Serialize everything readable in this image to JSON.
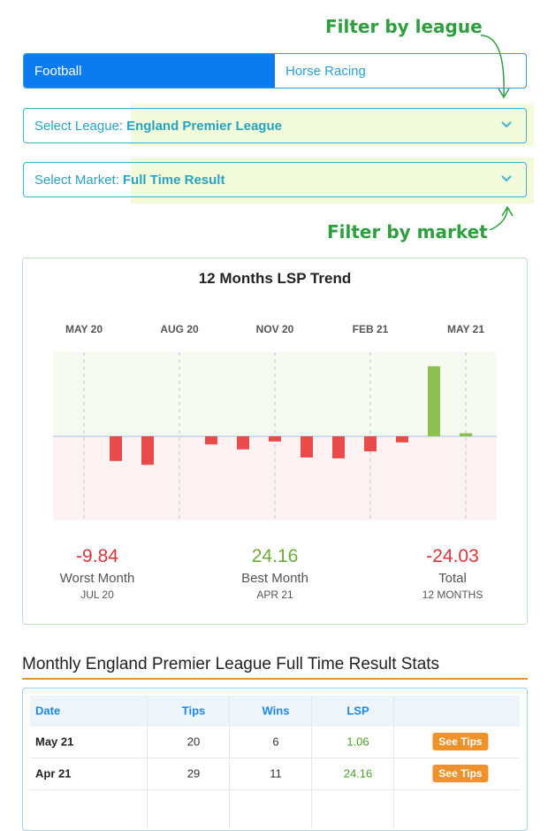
{
  "tabs": [
    "Football",
    "Horse Racing"
  ],
  "annotations": {
    "league": "Filter by league",
    "market": "Filter by market"
  },
  "league_select": {
    "label": "Select League:",
    "value": "England Premier League"
  },
  "market_select": {
    "label": "Select Market:",
    "value": "Full Time Result"
  },
  "chart_data": {
    "type": "bar",
    "title": "12 Months LSP Trend",
    "categories": [
      "MAY 20",
      null,
      null,
      "AUG 20",
      null,
      null,
      "NOV 20",
      null,
      null,
      "FEB 21",
      null,
      null,
      "MAY 21"
    ],
    "values": [
      null,
      -8.5,
      -9.84,
      null,
      -2.8,
      -4.5,
      -1.8,
      -7.3,
      -7.6,
      -5.2,
      -2.1,
      24.16,
      1.06
    ],
    "ylim": [
      -29,
      29
    ],
    "positive_color": "#8cc152",
    "negative_color": "#e94b4b"
  },
  "stats": [
    {
      "value": "-9.84",
      "label": "Worst Month",
      "sub": "JUL 20"
    },
    {
      "value": "24.16",
      "label": "Best Month",
      "sub": "APR 21"
    },
    {
      "value": "-24.03",
      "label": "Total",
      "sub": "12 MONTHS"
    }
  ],
  "section_title": "Monthly England Premier League Full Time Result Stats",
  "table": {
    "header": [
      "Date",
      "Tips",
      "Wins",
      "LSP"
    ],
    "rows": [
      [
        "May 21",
        "20",
        "6",
        "1.06",
        "See Tips"
      ],
      [
        "Apr 21",
        "29",
        "11",
        "24.16",
        "See Tips"
      ]
    ]
  }
}
